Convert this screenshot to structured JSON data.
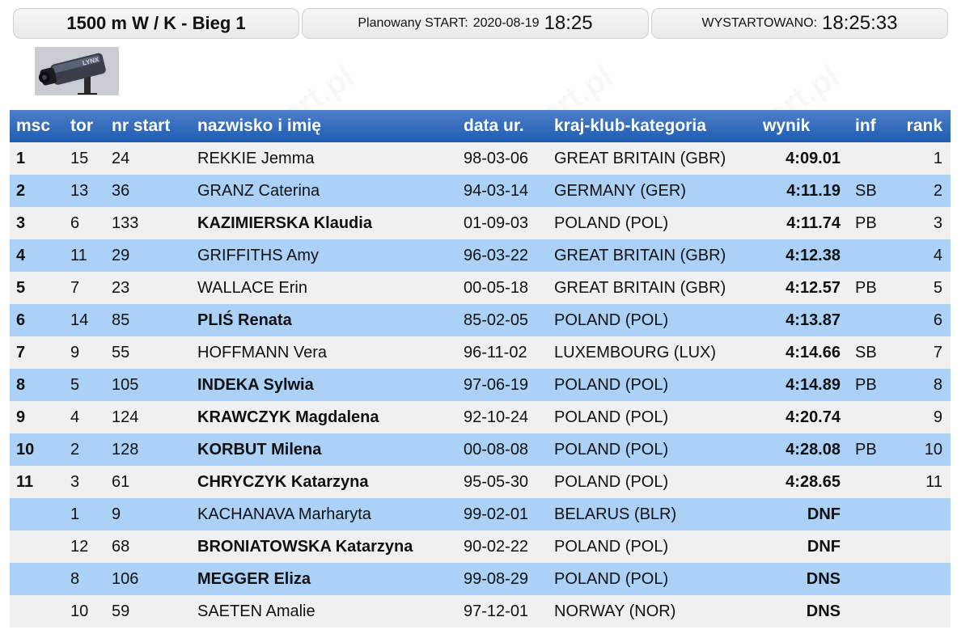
{
  "header": {
    "title": "1500 m W / K - Bieg 1",
    "planned_label": "Planowany START:",
    "planned_date": "2020-08-19",
    "planned_time": "18:25",
    "started_label": "WYSTARTOWANO:",
    "started_time": "18:25:33"
  },
  "camera": {
    "brand_text": "LYNX"
  },
  "table": {
    "columns": [
      "msc",
      "tor",
      "nr start",
      "nazwisko i imię",
      "data ur.",
      "kraj-klub-kategoria",
      "wynik",
      "inf",
      "rank"
    ],
    "rows": [
      {
        "msc": "1",
        "tor": "15",
        "nr": "24",
        "name": "REKKIE Jemma",
        "bold": false,
        "dob": "98-03-06",
        "club": "GREAT BRITAIN (GBR)",
        "result": "4:09.01",
        "inf": "",
        "rank": "1"
      },
      {
        "msc": "2",
        "tor": "13",
        "nr": "36",
        "name": "GRANZ Caterina",
        "bold": false,
        "dob": "94-03-14",
        "club": "GERMANY (GER)",
        "result": "4:11.19",
        "inf": "SB",
        "rank": "2"
      },
      {
        "msc": "3",
        "tor": "6",
        "nr": "133",
        "name": "KAZIMIERSKA Klaudia",
        "bold": true,
        "dob": "01-09-03",
        "club": "POLAND (POL)",
        "result": "4:11.74",
        "inf": "PB",
        "rank": "3"
      },
      {
        "msc": "4",
        "tor": "11",
        "nr": "29",
        "name": "GRIFFITHS Amy",
        "bold": false,
        "dob": "96-03-22",
        "club": "GREAT BRITAIN (GBR)",
        "result": "4:12.38",
        "inf": "",
        "rank": "4"
      },
      {
        "msc": "5",
        "tor": "7",
        "nr": "23",
        "name": "WALLACE Erin",
        "bold": false,
        "dob": "00-05-18",
        "club": "GREAT BRITAIN (GBR)",
        "result": "4:12.57",
        "inf": "PB",
        "rank": "5"
      },
      {
        "msc": "6",
        "tor": "14",
        "nr": "85",
        "name": "PLIŚ Renata",
        "bold": true,
        "dob": "85-02-05",
        "club": "POLAND (POL)",
        "result": "4:13.87",
        "inf": "",
        "rank": "6"
      },
      {
        "msc": "7",
        "tor": "9",
        "nr": "55",
        "name": "HOFFMANN Vera",
        "bold": false,
        "dob": "96-11-02",
        "club": "LUXEMBOURG (LUX)",
        "result": "4:14.66",
        "inf": "SB",
        "rank": "7"
      },
      {
        "msc": "8",
        "tor": "5",
        "nr": "105",
        "name": "INDEKA Sylwia",
        "bold": true,
        "dob": "97-06-19",
        "club": "POLAND (POL)",
        "result": "4:14.89",
        "inf": "PB",
        "rank": "8"
      },
      {
        "msc": "9",
        "tor": "4",
        "nr": "124",
        "name": "KRAWCZYK Magdalena",
        "bold": true,
        "dob": "92-10-24",
        "club": "POLAND (POL)",
        "result": "4:20.74",
        "inf": "",
        "rank": "9"
      },
      {
        "msc": "10",
        "tor": "2",
        "nr": "128",
        "name": "KORBUT Milena",
        "bold": true,
        "dob": "00-08-08",
        "club": "POLAND (POL)",
        "result": "4:28.08",
        "inf": "PB",
        "rank": "10"
      },
      {
        "msc": "11",
        "tor": "3",
        "nr": "61",
        "name": "CHRYCZYK Katarzyna",
        "bold": true,
        "dob": "95-05-30",
        "club": "POLAND (POL)",
        "result": "4:28.65",
        "inf": "",
        "rank": "11"
      },
      {
        "msc": "",
        "tor": "1",
        "nr": "9",
        "name": "KACHANAVA Marharyta",
        "bold": false,
        "dob": "99-02-01",
        "club": "BELARUS (BLR)",
        "result": "DNF",
        "inf": "",
        "rank": ""
      },
      {
        "msc": "",
        "tor": "12",
        "nr": "68",
        "name": "BRONIATOWSKA Katarzyna",
        "bold": true,
        "dob": "90-02-22",
        "club": "POLAND (POL)",
        "result": "DNF",
        "inf": "",
        "rank": ""
      },
      {
        "msc": "",
        "tor": "8",
        "nr": "106",
        "name": "MEGGER Eliza",
        "bold": true,
        "dob": "99-08-29",
        "club": "POLAND (POL)",
        "result": "DNS",
        "inf": "",
        "rank": ""
      },
      {
        "msc": "",
        "tor": "10",
        "nr": "59",
        "name": "SAETEN Amalie",
        "bold": false,
        "dob": "97-12-01",
        "club": "NORWAY (NOR)",
        "result": "DNS",
        "inf": "",
        "rank": ""
      }
    ]
  },
  "colors": {
    "header_blue": "#1f5cb1",
    "row_odd": "#f0f0f0",
    "row_even": "#abd1f7"
  }
}
